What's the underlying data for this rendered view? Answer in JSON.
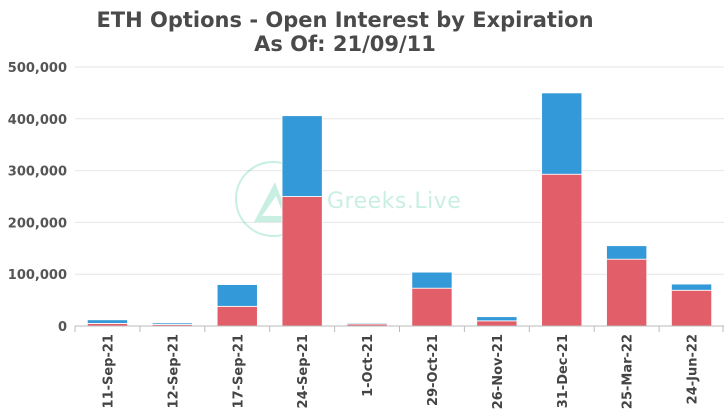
{
  "chart_data": {
    "type": "bar",
    "stacked": true,
    "title": "ETH Options - Open Interest by Expiration",
    "subtitle": "As Of: 21/09/11",
    "categories": [
      "11-Sep-21",
      "12-Sep-21",
      "17-Sep-21",
      "24-Sep-21",
      "1-Oct-21",
      "29-Oct-21",
      "26-Nov-21",
      "31-Dec-21",
      "25-Mar-22",
      "24-Jun-22"
    ],
    "series": [
      {
        "color": "#e25f6a",
        "values": [
          5000,
          3000,
          38000,
          250000,
          4000,
          73000,
          10000,
          293000,
          129000,
          69000
        ]
      },
      {
        "color": "#3399d8",
        "values": [
          7000,
          3000,
          42000,
          156000,
          2000,
          31000,
          8000,
          157000,
          26000,
          12000
        ]
      }
    ],
    "ylim": [
      0,
      500000
    ],
    "yticks": [
      "0",
      "100,000",
      "200,000",
      "300,000",
      "400,000",
      "500,000"
    ],
    "ytick_values": [
      0,
      100000,
      200000,
      300000,
      400000,
      500000
    ],
    "grid": true,
    "xlabel": "",
    "ylabel": ""
  },
  "watermark": {
    "text": "Greeks.Live",
    "color": "#3cc99b"
  }
}
